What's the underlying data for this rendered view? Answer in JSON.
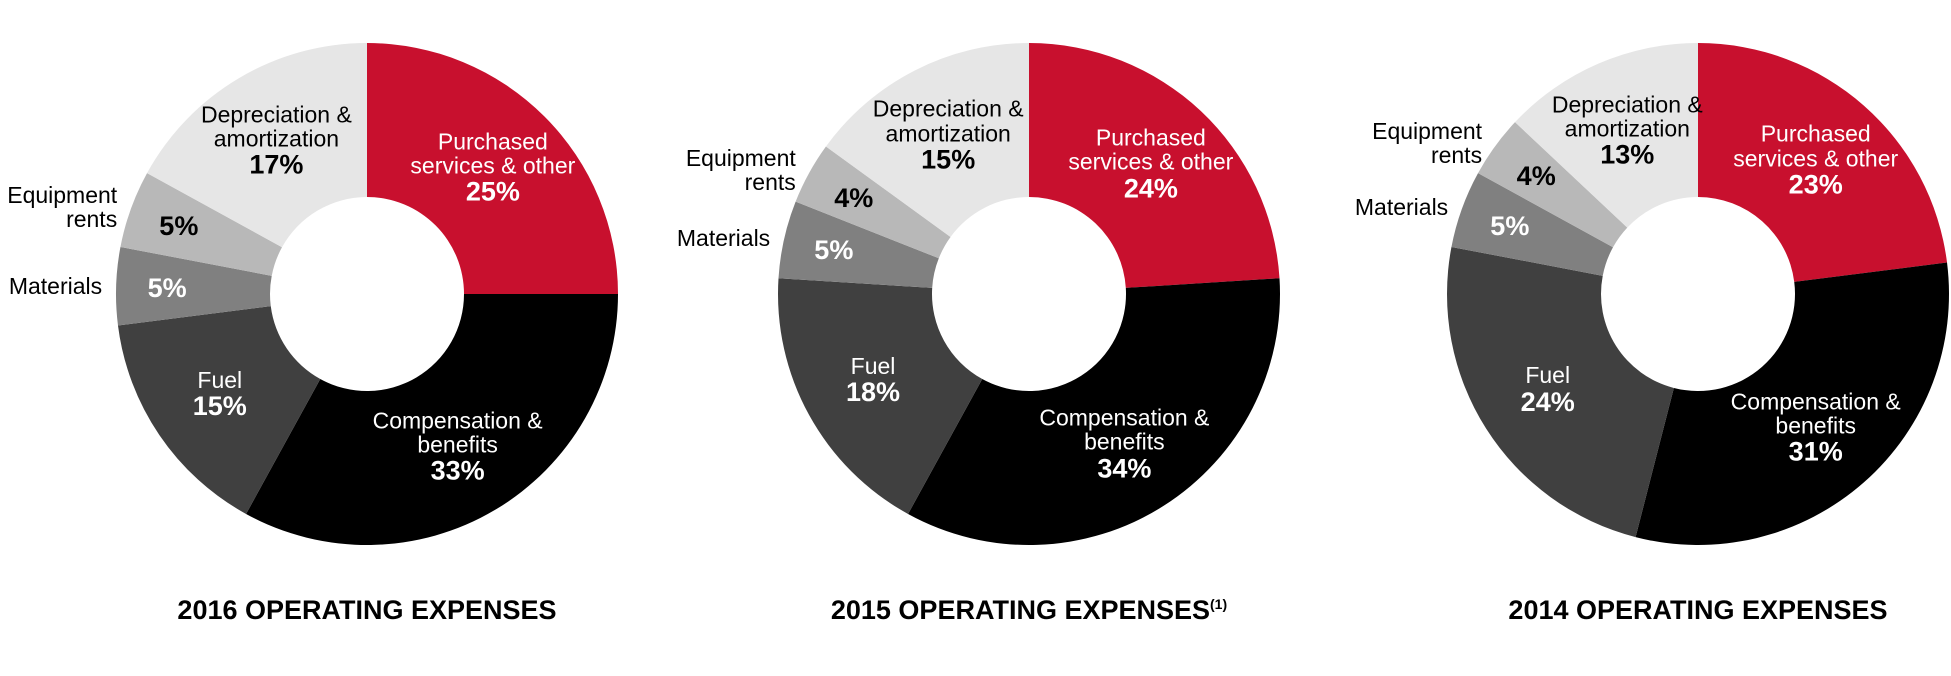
{
  "chart_data": [
    {
      "type": "pie",
      "title": "2016 OPERATING EXPENSES",
      "categories": [
        "Purchased services & other",
        "Compensation & benefits",
        "Fuel",
        "Materials",
        "Equipment rents",
        "Depreciation & amortization"
      ],
      "values": [
        25,
        33,
        15,
        5,
        5,
        17
      ],
      "value_labels": [
        "25%",
        "33%",
        "15%",
        "5%",
        "5%",
        "17%"
      ],
      "colors": [
        "#c8102e",
        "#000000",
        "#404040",
        "#808080",
        "#b8b8b8",
        "#e6e6e6"
      ]
    },
    {
      "type": "pie",
      "title": "2015 OPERATING EXPENSES",
      "title_note": "(1)",
      "categories": [
        "Purchased services & other",
        "Compensation & benefits",
        "Fuel",
        "Materials",
        "Equipment rents",
        "Depreciation & amortization"
      ],
      "values": [
        24,
        34,
        18,
        5,
        4,
        15
      ],
      "value_labels": [
        "24%",
        "34%",
        "18%",
        "5%",
        "4%",
        "15%"
      ],
      "colors": [
        "#c8102e",
        "#000000",
        "#404040",
        "#808080",
        "#b8b8b8",
        "#e6e6e6"
      ]
    },
    {
      "type": "pie",
      "title": "2014 OPERATING EXPENSES",
      "categories": [
        "Purchased services & other",
        "Compensation & benefits",
        "Fuel",
        "Materials",
        "Equipment rents",
        "Depreciation & amortization"
      ],
      "values": [
        23,
        31,
        24,
        5,
        4,
        13
      ],
      "value_labels": [
        "23%",
        "31%",
        "24%",
        "5%",
        "4%",
        "13%"
      ],
      "colors": [
        "#c8102e",
        "#000000",
        "#404040",
        "#808080",
        "#b8b8b8",
        "#e6e6e6"
      ]
    }
  ]
}
